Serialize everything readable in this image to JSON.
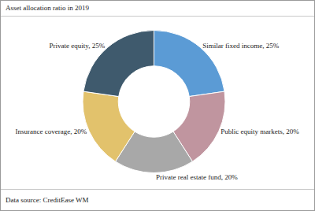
{
  "chart_data": {
    "type": "pie",
    "title": "Asset allocation ratio in 2019",
    "categories": [
      "Similar fixed income",
      "Public equity markets",
      "Private real estate fund",
      "Insurance coverage",
      "Private equity"
    ],
    "values": [
      25,
      20,
      20,
      20,
      25
    ],
    "value_labels": [
      "Similar fixed income, 25%",
      "Public equity markets, 20%",
      "Private real estate fund, 20%",
      "Insurance coverage, 20%",
      "Private equity, 25%"
    ],
    "colors": [
      "#5b9bd5",
      "#c0959f",
      "#a8a8a8",
      "#e2c26c",
      "#3f5a6d"
    ],
    "data_labels": true,
    "source": "Data source: CreditEase WM"
  }
}
